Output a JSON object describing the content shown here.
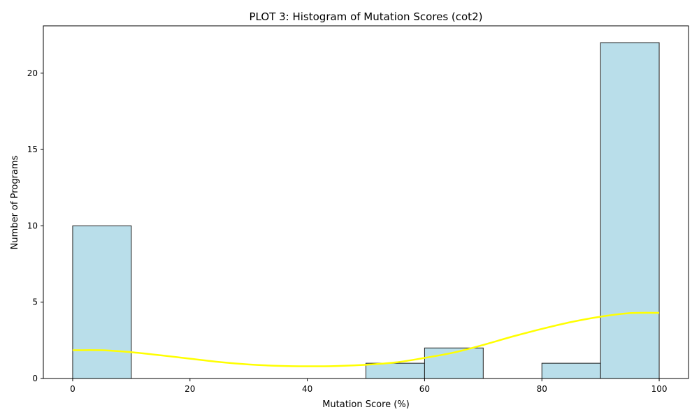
{
  "chart_data": {
    "type": "bar",
    "title": "PLOT 3: Histogram of Mutation Scores (cot2)",
    "xlabel": "Mutation Score (%)",
    "ylabel": "Number of Programs",
    "xlim": [
      -5,
      105
    ],
    "ylim": [
      0,
      23.1
    ],
    "xticks": [
      0,
      20,
      40,
      60,
      80,
      100
    ],
    "yticks": [
      0,
      5,
      10,
      15,
      20
    ],
    "bins": [
      {
        "start": 0,
        "end": 10,
        "count": 10
      },
      {
        "start": 10,
        "end": 20,
        "count": 0
      },
      {
        "start": 20,
        "end": 30,
        "count": 0
      },
      {
        "start": 30,
        "end": 40,
        "count": 0
      },
      {
        "start": 40,
        "end": 50,
        "count": 0
      },
      {
        "start": 50,
        "end": 60,
        "count": 1
      },
      {
        "start": 60,
        "end": 70,
        "count": 2
      },
      {
        "start": 70,
        "end": 80,
        "count": 0
      },
      {
        "start": 80,
        "end": 90,
        "count": 1
      },
      {
        "start": 90,
        "end": 100,
        "count": 22
      }
    ],
    "kde": {
      "x": [
        0,
        5,
        10,
        15,
        20,
        25,
        30,
        35,
        40,
        45,
        50,
        55,
        60,
        65,
        70,
        75,
        80,
        85,
        90,
        95,
        100
      ],
      "y": [
        1.85,
        1.85,
        1.72,
        1.52,
        1.3,
        1.08,
        0.92,
        0.83,
        0.8,
        0.82,
        0.9,
        1.05,
        1.35,
        1.7,
        2.2,
        2.75,
        3.25,
        3.7,
        4.05,
        4.28,
        4.3
      ]
    },
    "colors": {
      "bar_fill": "#add8e6",
      "bar_edge": "#1f1f1f",
      "kde_line": "#ffff00"
    },
    "grid": false,
    "legend": "none"
  }
}
